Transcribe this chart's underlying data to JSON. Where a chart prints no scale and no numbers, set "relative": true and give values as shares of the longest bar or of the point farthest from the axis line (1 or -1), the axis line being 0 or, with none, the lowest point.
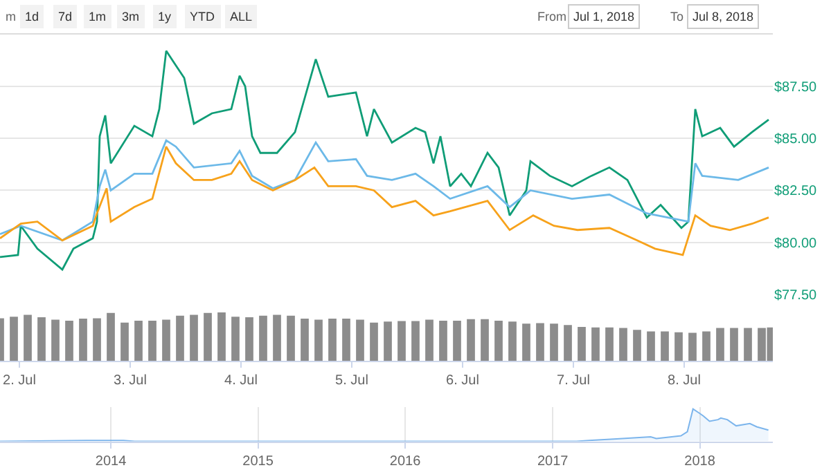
{
  "chart_data": [
    {
      "type": "line",
      "annotations": [
        "m",
        "1d",
        "7d",
        "1m",
        "3m",
        "1y",
        "YTD",
        "ALL",
        "From",
        "Jul 1, 2018",
        "To",
        "Jul 8, 2018"
      ],
      "xlim": [
        "2018-07-01T19:48",
        "2018-07-08T19:12"
      ],
      "ylim": [
        77.5,
        90.0
      ],
      "yticks": [
        {
          "value": 77.5,
          "label": "$77.50"
        },
        {
          "value": 80,
          "label": "$80.00"
        },
        {
          "value": 82.5,
          "label": "$82.50"
        },
        {
          "value": 85,
          "label": "$85.00"
        },
        {
          "value": 87.5,
          "label": "$87.50"
        }
      ],
      "grid": "y",
      "tick_labels": "y",
      "marker": "none",
      "line_style": "solid",
      "series": [
        {
          "color": "#109d77",
          "x": [
            "2018-07-01T19:48",
            "2018-07-01T23:42",
            "2018-07-02T00:18",
            "2018-07-02T03:54",
            "2018-07-02T09:18",
            "2018-07-02T11:42",
            "2018-07-02T15:54",
            "2018-07-02T16:48",
            "2018-07-02T17:24",
            "2018-07-02T18:36",
            "2018-07-02T19:48",
            "2018-07-03T00:54",
            "2018-07-03T04:48",
            "2018-07-03T06:18",
            "2018-07-03T07:48",
            "2018-07-03T09:54",
            "2018-07-03T11:42",
            "2018-07-03T13:48",
            "2018-07-03T17:42",
            "2018-07-03T21:54",
            "2018-07-03T23:42",
            "2018-07-04T00:54",
            "2018-07-04T02:24",
            "2018-07-04T04:12",
            "2018-07-04T07:48",
            "2018-07-04T11:42",
            "2018-07-04T16:12",
            "2018-07-04T18:54",
            "2018-07-05T00:54",
            "2018-07-05T03:18",
            "2018-07-05T04:48",
            "2018-07-05T08:42",
            "2018-07-05T13:48",
            "2018-07-05T15:54",
            "2018-07-05T17:42",
            "2018-07-05T19:12",
            "2018-07-05T21:18",
            "2018-07-05T23:42",
            "2018-07-06T01:48",
            "2018-07-06T05:24",
            "2018-07-06T07:48",
            "2018-07-06T10:12",
            "2018-07-06T13:48",
            "2018-07-06T14:42",
            "2018-07-06T18:54",
            "2018-07-06T23:42",
            "2018-07-07T03:54",
            "2018-07-07T07:48",
            "2018-07-07T11:42",
            "2018-07-07T15:54",
            "2018-07-07T18:54",
            "2018-07-07T23:24",
            "2018-07-08T00:54",
            "2018-07-08T02:24",
            "2018-07-08T03:54",
            "2018-07-08T07:48",
            "2018-07-08T10:48",
            "2018-07-08T14:42",
            "2018-07-08T18:18"
          ],
          "values": [
            79.3,
            79.4,
            80.8,
            79.7,
            78.7,
            79.7,
            80.2,
            81.0,
            85.1,
            86.1,
            83.8,
            85.6,
            85.1,
            86.4,
            89.2,
            88.5,
            87.9,
            85.7,
            86.2,
            86.4,
            88.0,
            87.5,
            85.1,
            84.3,
            84.3,
            85.3,
            88.8,
            87.0,
            87.2,
            85.1,
            86.4,
            84.8,
            85.5,
            85.3,
            83.8,
            85.1,
            82.7,
            83.3,
            82.7,
            84.3,
            83.6,
            81.3,
            82.5,
            83.9,
            83.2,
            82.7,
            83.2,
            83.6,
            83.0,
            81.2,
            81.8,
            80.7,
            81.0,
            86.4,
            85.1,
            85.5,
            84.6,
            85.3,
            85.9
          ]
        },
        {
          "color": "#6cb9e8",
          "x": [
            "2018-07-01T19:48",
            "2018-07-02T00:18",
            "2018-07-02T09:18",
            "2018-07-02T15:54",
            "2018-07-02T17:24",
            "2018-07-02T18:36",
            "2018-07-02T19:48",
            "2018-07-03T00:54",
            "2018-07-03T04:48",
            "2018-07-03T07:48",
            "2018-07-03T09:54",
            "2018-07-03T13:48",
            "2018-07-03T21:54",
            "2018-07-03T23:42",
            "2018-07-04T02:24",
            "2018-07-04T06:54",
            "2018-07-04T11:42",
            "2018-07-04T16:12",
            "2018-07-04T18:54",
            "2018-07-05T00:54",
            "2018-07-05T03:18",
            "2018-07-05T08:42",
            "2018-07-05T13:48",
            "2018-07-05T17:42",
            "2018-07-05T21:18",
            "2018-07-06T05:24",
            "2018-07-06T10:12",
            "2018-07-06T14:42",
            "2018-07-06T23:42",
            "2018-07-07T07:48",
            "2018-07-07T15:54",
            "2018-07-08T00:54",
            "2018-07-08T02:24",
            "2018-07-08T03:54",
            "2018-07-08T11:42",
            "2018-07-08T18:18"
          ],
          "values": [
            80.4,
            80.8,
            80.1,
            81.0,
            82.7,
            83.5,
            82.5,
            83.3,
            83.3,
            84.9,
            84.6,
            83.6,
            83.8,
            84.4,
            83.2,
            82.6,
            83.0,
            84.8,
            83.9,
            84.0,
            83.2,
            83.0,
            83.3,
            82.7,
            82.1,
            82.7,
            81.7,
            82.5,
            82.1,
            82.3,
            81.4,
            81.0,
            83.8,
            83.2,
            83.0,
            83.6
          ]
        },
        {
          "color": "#f7a21b",
          "x": [
            "2018-07-01T19:48",
            "2018-07-02T00:18",
            "2018-07-02T03:54",
            "2018-07-02T09:18",
            "2018-07-02T15:54",
            "2018-07-02T16:48",
            "2018-07-02T18:54",
            "2018-07-02T19:48",
            "2018-07-03T00:54",
            "2018-07-03T04:48",
            "2018-07-03T07:48",
            "2018-07-03T09:54",
            "2018-07-03T13:48",
            "2018-07-03T17:42",
            "2018-07-03T21:54",
            "2018-07-03T23:42",
            "2018-07-04T02:24",
            "2018-07-04T06:54",
            "2018-07-04T11:42",
            "2018-07-04T15:54",
            "2018-07-04T18:54",
            "2018-07-05T00:54",
            "2018-07-05T04:48",
            "2018-07-05T08:42",
            "2018-07-05T13:48",
            "2018-07-05T17:42",
            "2018-07-05T21:18",
            "2018-07-06T05:24",
            "2018-07-06T10:12",
            "2018-07-06T15:18",
            "2018-07-06T19:48",
            "2018-07-07T00:54",
            "2018-07-07T07:48",
            "2018-07-07T13:48",
            "2018-07-07T17:42",
            "2018-07-07T23:42",
            "2018-07-08T02:24",
            "2018-07-08T05:42",
            "2018-07-08T09:54",
            "2018-07-08T14:42",
            "2018-07-08T18:18"
          ],
          "values": [
            80.2,
            80.9,
            81.0,
            80.1,
            80.8,
            81.4,
            82.6,
            81.0,
            81.7,
            82.1,
            84.6,
            83.8,
            83.0,
            83.0,
            83.3,
            83.9,
            83.0,
            82.5,
            83.0,
            83.6,
            82.7,
            82.7,
            82.5,
            81.7,
            82.0,
            81.3,
            81.5,
            82.0,
            80.6,
            81.3,
            80.8,
            80.6,
            80.7,
            80.1,
            79.7,
            79.4,
            81.3,
            80.8,
            80.6,
            80.9,
            81.2
          ]
        }
      ]
    },
    {
      "type": "bar",
      "relative": true,
      "tick_labels": "x",
      "xlim": [
        "2018-07-01T19:48",
        "2018-07-08T19:12"
      ],
      "xticks": [
        {
          "value": "2018-07-02",
          "label": "2. Jul"
        },
        {
          "value": "2018-07-03",
          "label": "3. Jul"
        },
        {
          "value": "2018-07-04",
          "label": "4. Jul"
        },
        {
          "value": "2018-07-05",
          "label": "5. Jul"
        },
        {
          "value": "2018-07-06",
          "label": "6. Jul"
        },
        {
          "value": "2018-07-07",
          "label": "7. Jul"
        },
        {
          "value": "2018-07-08",
          "label": "8. Jul"
        }
      ],
      "x": [
        "2018-07-01T19:48",
        "2018-07-01T22:48",
        "2018-07-02T01:48",
        "2018-07-02T04:48",
        "2018-07-02T07:48",
        "2018-07-02T10:48",
        "2018-07-02T13:48",
        "2018-07-02T16:48",
        "2018-07-02T19:48",
        "2018-07-02T22:48",
        "2018-07-03T01:48",
        "2018-07-03T04:48",
        "2018-07-03T07:48",
        "2018-07-03T10:48",
        "2018-07-03T13:48",
        "2018-07-03T16:48",
        "2018-07-03T19:48",
        "2018-07-03T22:48",
        "2018-07-04T01:48",
        "2018-07-04T04:48",
        "2018-07-04T07:48",
        "2018-07-04T10:48",
        "2018-07-04T13:48",
        "2018-07-04T16:48",
        "2018-07-04T19:48",
        "2018-07-04T22:48",
        "2018-07-05T01:48",
        "2018-07-05T04:48",
        "2018-07-05T07:48",
        "2018-07-05T10:48",
        "2018-07-05T13:48",
        "2018-07-05T16:48",
        "2018-07-05T19:48",
        "2018-07-05T22:48",
        "2018-07-06T01:48",
        "2018-07-06T04:48",
        "2018-07-06T07:48",
        "2018-07-06T10:48",
        "2018-07-06T13:48",
        "2018-07-06T16:48",
        "2018-07-06T19:48",
        "2018-07-06T22:48",
        "2018-07-07T01:48",
        "2018-07-07T04:48",
        "2018-07-07T07:48",
        "2018-07-07T10:48",
        "2018-07-07T13:48",
        "2018-07-07T16:48",
        "2018-07-07T19:48",
        "2018-07-07T22:48",
        "2018-07-08T01:48",
        "2018-07-08T04:48",
        "2018-07-08T07:48",
        "2018-07-08T10:48",
        "2018-07-08T13:48",
        "2018-07-08T16:48",
        "2018-07-08T18:48"
      ],
      "color": "#8c8c8c",
      "values": [
        0.88,
        0.91,
        0.95,
        0.9,
        0.85,
        0.83,
        0.87,
        0.88,
        0.99,
        0.79,
        0.83,
        0.83,
        0.85,
        0.93,
        0.95,
        0.99,
        1,
        0.91,
        0.9,
        0.93,
        0.95,
        0.93,
        0.87,
        0.85,
        0.87,
        0.87,
        0.85,
        0.79,
        0.81,
        0.82,
        0.82,
        0.85,
        0.83,
        0.83,
        0.86,
        0.86,
        0.83,
        0.81,
        0.77,
        0.78,
        0.77,
        0.74,
        0.7,
        0.69,
        0.69,
        0.68,
        0.64,
        0.61,
        0.61,
        0.59,
        0.58,
        0.61,
        0.68,
        0.68,
        0.68,
        0.68,
        0.69
      ]
    },
    {
      "type": "area",
      "relative": true,
      "tick_labels": "x",
      "grid": "x",
      "marker": "none",
      "xlim": [
        "2013-04",
        "2018-07"
      ],
      "xticks": [
        {
          "value": "2014",
          "label": "2014"
        },
        {
          "value": "2015",
          "label": "2015"
        },
        {
          "value": "2016",
          "label": "2016"
        },
        {
          "value": "2017",
          "label": "2017"
        },
        {
          "value": "2018",
          "label": "2018"
        }
      ],
      "x": [
        "2013-04",
        "2013-11",
        "2014-02",
        "2014-03",
        "2017-03",
        "2017-04",
        "2017-06",
        "2017-09",
        "2017-09-15",
        "2017-11-15",
        "2017-12",
        "2017-12-15",
        "2018-01",
        "2018-01-10",
        "2018-01-25",
        "2018-02-15",
        "2018-02-22",
        "2018-03-10",
        "2018-04",
        "2018-05-05",
        "2018-05-22",
        "2018-06-20"
      ],
      "color": "#7cb5ec",
      "values": [
        0,
        0.03,
        0.03,
        0,
        0,
        0.03,
        0.07,
        0.14,
        0.09,
        0.17,
        0.3,
        1,
        0.86,
        0.78,
        0.62,
        0.67,
        0.72,
        0.67,
        0.48,
        0.55,
        0.45,
        0.35
      ]
    }
  ]
}
